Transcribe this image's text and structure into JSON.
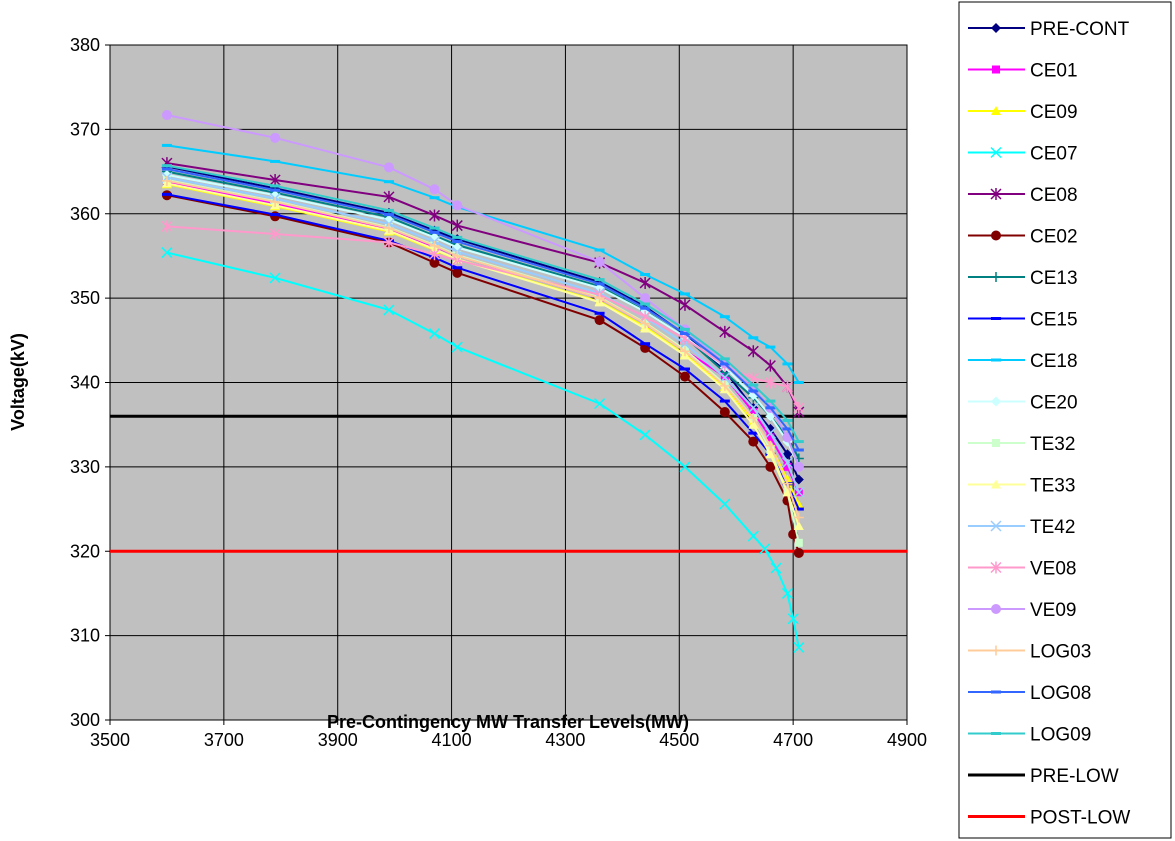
{
  "chart_data": {
    "type": "line",
    "title": "",
    "xlabel": "Pre-Contingency MW Transfer Levels(MW)",
    "ylabel": "Voltage(kV)",
    "xlim": [
      3500,
      4900
    ],
    "ylim": [
      300,
      380
    ],
    "xticks": [
      3500,
      3700,
      3900,
      4100,
      4300,
      4500,
      4700,
      4900
    ],
    "yticks": [
      300,
      310,
      320,
      330,
      340,
      350,
      360,
      370,
      380
    ],
    "grid": true,
    "plot_background": "#c0c0c0",
    "legend_position": "right",
    "reference_lines": [
      {
        "name": "PRE-LOW",
        "y": 336,
        "color": "#000000"
      },
      {
        "name": "POST-LOW",
        "y": 320,
        "color": "#ff0000"
      }
    ],
    "series": [
      {
        "name": "PRE-CONT",
        "color": "#000080",
        "marker": "diamond",
        "points": [
          [
            3600,
            365.6
          ],
          [
            3790,
            363.0
          ],
          [
            3990,
            360.1
          ],
          [
            4070,
            358.0
          ],
          [
            4110,
            357.0
          ],
          [
            4360,
            351.9
          ],
          [
            4440,
            349.0
          ],
          [
            4510,
            345.7
          ],
          [
            4580,
            341.4
          ],
          [
            4630,
            337.0
          ],
          [
            4660,
            334.5
          ],
          [
            4690,
            331.5
          ],
          [
            4710,
            328.5
          ]
        ]
      },
      {
        "name": "CE01",
        "color": "#ff00ff",
        "marker": "square",
        "points": [
          [
            3600,
            363.8
          ],
          [
            3790,
            361.2
          ],
          [
            3990,
            358.2
          ],
          [
            4070,
            356.1
          ],
          [
            4110,
            355.0
          ],
          [
            4360,
            350.0
          ],
          [
            4440,
            347.0
          ],
          [
            4510,
            343.8
          ],
          [
            4580,
            340.7
          ],
          [
            4630,
            336.5
          ],
          [
            4660,
            333.5
          ],
          [
            4690,
            330.0
          ],
          [
            4710,
            327.0
          ]
        ]
      },
      {
        "name": "CE09",
        "color": "#ffff00",
        "marker": "triangle",
        "points": [
          [
            3600,
            363.5
          ],
          [
            3790,
            360.9
          ],
          [
            3990,
            357.9
          ],
          [
            4070,
            355.7
          ],
          [
            4110,
            354.6
          ],
          [
            4360,
            349.6
          ],
          [
            4440,
            346.6
          ],
          [
            4510,
            343.3
          ],
          [
            4580,
            339.5
          ],
          [
            4630,
            335.5
          ],
          [
            4660,
            332.5
          ],
          [
            4690,
            328.5
          ],
          [
            4710,
            325.5
          ]
        ]
      },
      {
        "name": "CE07",
        "color": "#00ffff",
        "marker": "x",
        "points": [
          [
            3600,
            355.4
          ],
          [
            3790,
            352.4
          ],
          [
            3990,
            348.6
          ],
          [
            4070,
            345.8
          ],
          [
            4110,
            344.2
          ],
          [
            4360,
            337.5
          ],
          [
            4440,
            333.8
          ],
          [
            4510,
            330.0
          ],
          [
            4580,
            325.6
          ],
          [
            4630,
            321.8
          ],
          [
            4650,
            320.3
          ],
          [
            4670,
            318.0
          ],
          [
            4690,
            315.0
          ],
          [
            4700,
            312.0
          ],
          [
            4710,
            308.6
          ]
        ]
      },
      {
        "name": "CE08",
        "color": "#800080",
        "marker": "star",
        "points": [
          [
            3600,
            366.0
          ],
          [
            3790,
            364.0
          ],
          [
            3990,
            362.0
          ],
          [
            4070,
            359.8
          ],
          [
            4110,
            358.6
          ],
          [
            4360,
            354.2
          ],
          [
            4440,
            351.8
          ],
          [
            4510,
            349.2
          ],
          [
            4580,
            346.0
          ],
          [
            4630,
            343.7
          ],
          [
            4660,
            342.0
          ],
          [
            4690,
            339.5
          ],
          [
            4710,
            336.5
          ]
        ]
      },
      {
        "name": "CE02",
        "color": "#800000",
        "marker": "circle",
        "points": [
          [
            3600,
            362.2
          ],
          [
            3790,
            359.7
          ],
          [
            3990,
            356.6
          ],
          [
            4070,
            354.2
          ],
          [
            4110,
            353.0
          ],
          [
            4360,
            347.4
          ],
          [
            4440,
            344.1
          ],
          [
            4510,
            340.7
          ],
          [
            4580,
            336.5
          ],
          [
            4630,
            333.0
          ],
          [
            4660,
            330.0
          ],
          [
            4690,
            326.0
          ],
          [
            4700,
            322.0
          ],
          [
            4710,
            319.8
          ]
        ]
      },
      {
        "name": "CE13",
        "color": "#008080",
        "marker": "plus",
        "points": [
          [
            3600,
            365.0
          ],
          [
            3790,
            362.5
          ],
          [
            3990,
            359.6
          ],
          [
            4070,
            357.4
          ],
          [
            4110,
            356.3
          ],
          [
            4360,
            351.4
          ],
          [
            4440,
            348.5
          ],
          [
            4510,
            345.4
          ],
          [
            4580,
            341.2
          ],
          [
            4630,
            338.2
          ],
          [
            4660,
            336.0
          ],
          [
            4690,
            333.5
          ],
          [
            4710,
            331.0
          ]
        ]
      },
      {
        "name": "CE15",
        "color": "#0000ff",
        "marker": "dash",
        "points": [
          [
            3600,
            362.3
          ],
          [
            3790,
            359.9
          ],
          [
            3990,
            356.8
          ],
          [
            4070,
            354.8
          ],
          [
            4110,
            353.6
          ],
          [
            4360,
            348.2
          ],
          [
            4440,
            344.6
          ],
          [
            4510,
            341.6
          ],
          [
            4580,
            337.8
          ],
          [
            4630,
            334.0
          ],
          [
            4660,
            331.5
          ],
          [
            4690,
            328.0
          ],
          [
            4710,
            325.0
          ]
        ]
      },
      {
        "name": "CE18",
        "color": "#00ccff",
        "marker": "dash",
        "points": [
          [
            3600,
            368.1
          ],
          [
            3790,
            366.2
          ],
          [
            3990,
            363.8
          ],
          [
            4070,
            361.9
          ],
          [
            4110,
            360.8
          ],
          [
            4360,
            355.7
          ],
          [
            4440,
            352.8
          ],
          [
            4510,
            350.5
          ],
          [
            4580,
            347.8
          ],
          [
            4630,
            345.3
          ],
          [
            4660,
            344.2
          ],
          [
            4690,
            342.2
          ],
          [
            4710,
            340.0
          ]
        ]
      },
      {
        "name": "CE20",
        "color": "#ccffff",
        "marker": "diamond",
        "points": [
          [
            3600,
            364.6
          ],
          [
            3790,
            362.2
          ],
          [
            3990,
            359.3
          ],
          [
            4070,
            357.2
          ],
          [
            4110,
            356.0
          ],
          [
            4360,
            351.2
          ],
          [
            4440,
            348.4
          ],
          [
            4510,
            345.4
          ],
          [
            4580,
            341.8
          ],
          [
            4630,
            338.5
          ],
          [
            4660,
            336.0
          ],
          [
            4690,
            333.0
          ],
          [
            4710,
            330.0
          ]
        ]
      },
      {
        "name": "TE32",
        "color": "#ccffcc",
        "marker": "square",
        "points": [
          [
            3600,
            364.0
          ],
          [
            3790,
            361.5
          ],
          [
            3990,
            358.4
          ],
          [
            4070,
            356.3
          ],
          [
            4110,
            355.1
          ],
          [
            4360,
            350.1
          ],
          [
            4440,
            347.1
          ],
          [
            4510,
            343.9
          ],
          [
            4580,
            339.8
          ],
          [
            4630,
            335.8
          ],
          [
            4660,
            332.0
          ],
          [
            4690,
            327.0
          ],
          [
            4710,
            321.0
          ]
        ]
      },
      {
        "name": "TE33",
        "color": "#ffff99",
        "marker": "triangle",
        "points": [
          [
            3600,
            363.6
          ],
          [
            3790,
            361.0
          ],
          [
            3990,
            358.0
          ],
          [
            4070,
            355.8
          ],
          [
            4110,
            354.6
          ],
          [
            4360,
            349.5
          ],
          [
            4440,
            346.4
          ],
          [
            4510,
            343.2
          ],
          [
            4580,
            339.2
          ],
          [
            4630,
            335.0
          ],
          [
            4660,
            331.5
          ],
          [
            4690,
            327.0
          ],
          [
            4710,
            323.0
          ]
        ]
      },
      {
        "name": "TE42",
        "color": "#99ccff",
        "marker": "x",
        "points": [
          [
            3600,
            364.3
          ],
          [
            3790,
            361.8
          ],
          [
            3990,
            358.8
          ],
          [
            4070,
            356.7
          ],
          [
            4110,
            355.5
          ],
          [
            4360,
            350.6
          ],
          [
            4440,
            347.7
          ],
          [
            4510,
            344.6
          ],
          [
            4580,
            340.6
          ],
          [
            4630,
            337.0
          ],
          [
            4660,
            334.0
          ],
          [
            4690,
            330.5
          ],
          [
            4710,
            327.0
          ]
        ]
      },
      {
        "name": "VE08",
        "color": "#ff99cc",
        "marker": "star",
        "points": [
          [
            3600,
            358.5
          ],
          [
            3790,
            357.6
          ],
          [
            3990,
            356.6
          ],
          [
            4070,
            355.2
          ],
          [
            4110,
            354.5
          ],
          [
            4360,
            350.4
          ],
          [
            4440,
            347.8
          ],
          [
            4510,
            345.2
          ],
          [
            4580,
            342.0
          ],
          [
            4630,
            340.5
          ],
          [
            4660,
            340.0
          ],
          [
            4690,
            339.5
          ],
          [
            4710,
            337.0
          ]
        ]
      },
      {
        "name": "VE09",
        "color": "#cc99ff",
        "marker": "circle",
        "points": [
          [
            3600,
            371.7
          ],
          [
            3790,
            369.0
          ],
          [
            3990,
            365.5
          ],
          [
            4070,
            362.9
          ],
          [
            4110,
            361.0
          ],
          [
            4360,
            354.3
          ],
          [
            4440,
            350.0
          ],
          [
            4510,
            346.3
          ],
          [
            4580,
            342.3
          ],
          [
            4630,
            339.3
          ],
          [
            4660,
            337.0
          ],
          [
            4690,
            333.5
          ],
          [
            4710,
            330.0
          ]
        ]
      },
      {
        "name": "LOG03",
        "color": "#ffcc99",
        "marker": "plus",
        "points": [
          [
            3600,
            363.9
          ],
          [
            3790,
            361.4
          ],
          [
            3990,
            358.3
          ],
          [
            4070,
            356.2
          ],
          [
            4110,
            355.0
          ],
          [
            4360,
            350.0
          ],
          [
            4440,
            347.0
          ],
          [
            4510,
            343.7
          ],
          [
            4580,
            339.6
          ],
          [
            4630,
            335.8
          ],
          [
            4660,
            332.5
          ],
          [
            4690,
            328.0
          ],
          [
            4710,
            324.0
          ]
        ]
      },
      {
        "name": "LOG08",
        "color": "#3366ff",
        "marker": "dash",
        "points": [
          [
            3600,
            365.3
          ],
          [
            3790,
            362.8
          ],
          [
            3990,
            359.9
          ],
          [
            4070,
            357.8
          ],
          [
            4110,
            356.7
          ],
          [
            4360,
            351.7
          ],
          [
            4440,
            348.8
          ],
          [
            4510,
            345.8
          ],
          [
            4580,
            342.2
          ],
          [
            4630,
            339.0
          ],
          [
            4660,
            337.0
          ],
          [
            4690,
            334.5
          ],
          [
            4710,
            332.0
          ]
        ]
      },
      {
        "name": "LOG09",
        "color": "#33cccc",
        "marker": "dash",
        "points": [
          [
            3600,
            365.7
          ],
          [
            3790,
            363.3
          ],
          [
            3990,
            360.4
          ],
          [
            4070,
            358.3
          ],
          [
            4110,
            357.2
          ],
          [
            4360,
            352.2
          ],
          [
            4440,
            349.3
          ],
          [
            4510,
            346.3
          ],
          [
            4580,
            342.8
          ],
          [
            4630,
            339.7
          ],
          [
            4660,
            337.8
          ],
          [
            4690,
            335.5
          ],
          [
            4710,
            333.0
          ]
        ]
      }
    ]
  }
}
